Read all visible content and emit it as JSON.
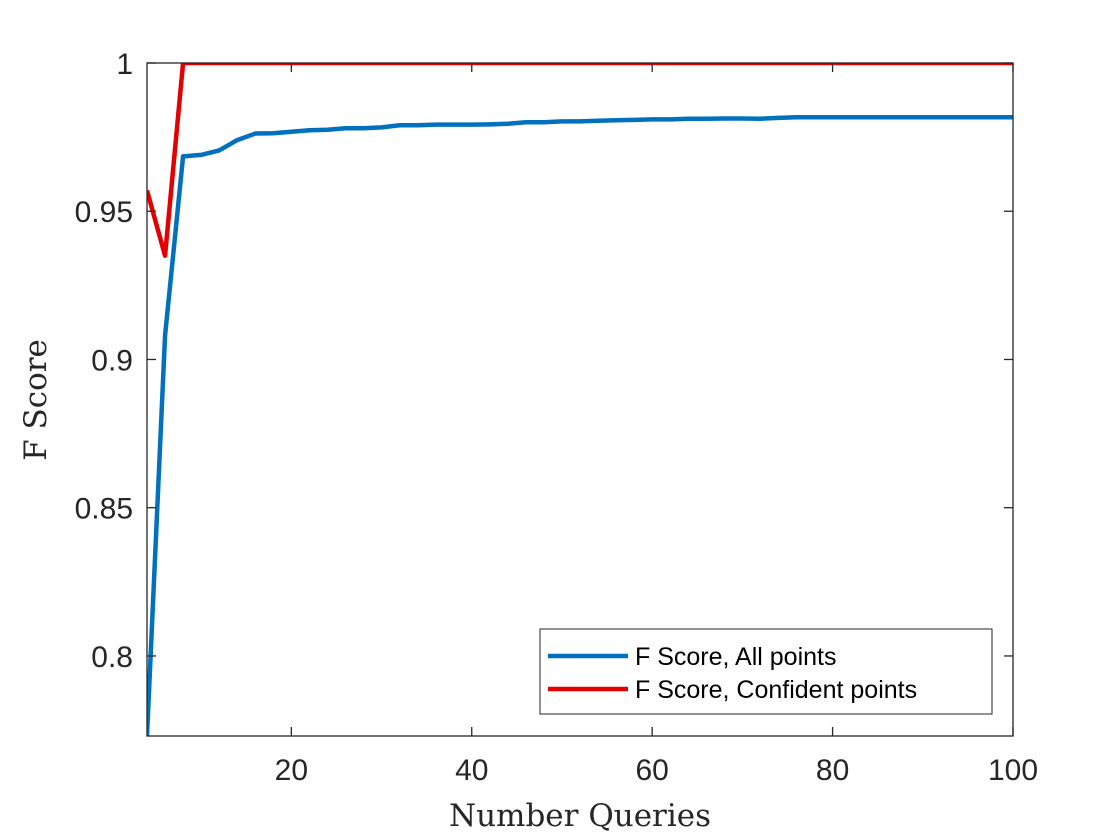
{
  "chart_data": {
    "type": "line",
    "title": "",
    "xlabel": "Number Queries",
    "ylabel": "F Score",
    "xlim": [
      4,
      100
    ],
    "ylim": [
      0.773,
      1.0
    ],
    "xticks": [
      20,
      40,
      60,
      80,
      100
    ],
    "yticks": [
      0.8,
      0.85,
      0.9,
      0.95,
      1
    ],
    "xtick_labels": [
      "20",
      "40",
      "60",
      "80",
      "100"
    ],
    "ytick_labels": [
      "0.8",
      "0.85",
      "0.9",
      "0.95",
      "1"
    ],
    "grid": false,
    "legend_position": "bottom-right",
    "series": [
      {
        "name": "F Score, All points",
        "color": "#0072BD",
        "x": [
          4,
          6,
          8,
          10,
          12,
          14,
          16,
          18,
          20,
          22,
          24,
          26,
          28,
          30,
          32,
          34,
          36,
          38,
          40,
          42,
          44,
          46,
          48,
          50,
          52,
          54,
          56,
          58,
          60,
          62,
          64,
          66,
          68,
          70,
          72,
          74,
          76,
          78,
          80,
          82,
          84,
          86,
          88,
          90,
          92,
          94,
          96,
          98,
          100
        ],
        "y": [
          0.773,
          0.908,
          0.9685,
          0.969,
          0.9705,
          0.974,
          0.9762,
          0.9763,
          0.9768,
          0.9773,
          0.9775,
          0.978,
          0.978,
          0.9783,
          0.979,
          0.979,
          0.9792,
          0.9792,
          0.9792,
          0.9793,
          0.9795,
          0.98,
          0.98,
          0.9803,
          0.9803,
          0.9805,
          0.9807,
          0.9808,
          0.981,
          0.981,
          0.9812,
          0.9812,
          0.9813,
          0.9813,
          0.9812,
          0.9815,
          0.9817,
          0.9817,
          0.9817,
          0.9817,
          0.9817,
          0.9817,
          0.9817,
          0.9817,
          0.9817,
          0.9817,
          0.9817,
          0.9817,
          0.9817
        ]
      },
      {
        "name": "F Score, Confident points",
        "color": "#E50000",
        "x": [
          4,
          6,
          8,
          10,
          20,
          30,
          40,
          50,
          60,
          70,
          80,
          90,
          100
        ],
        "y": [
          0.957,
          0.935,
          1.0,
          1.0,
          1.0,
          1.0,
          1.0,
          1.0,
          1.0,
          1.0,
          1.0,
          1.0,
          1.0
        ]
      }
    ]
  }
}
